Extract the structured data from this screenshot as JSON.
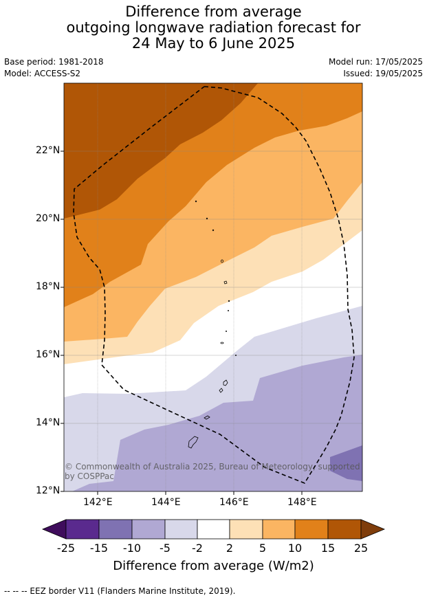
{
  "title": {
    "line1": "Difference from average",
    "line2": "outgoing longwave radiation forecast for",
    "line3": "24 May to 6 June 2025"
  },
  "meta": {
    "base_period": "Base period: 1981-2018",
    "model": "Model: ACCESS-S2",
    "model_run": "Model run: 17/05/2025",
    "issued": "Issued: 19/05/2025"
  },
  "map": {
    "lat_ticks": [
      "22°N",
      "20°N",
      "18°N",
      "16°N",
      "14°N",
      "12°N"
    ],
    "lon_ticks": [
      "142°E",
      "144°E",
      "146°E",
      "148°E"
    ],
    "lat_range": [
      12,
      23.9
    ],
    "lon_range": [
      141,
      149.75
    ],
    "copyright": "© Commonwealth of Australia 2025, Bureau of Meteorology, supported by COSPPac"
  },
  "colorbar": {
    "labels": [
      "-25",
      "-15",
      "-10",
      "-5",
      "-2",
      "2",
      "5",
      "10",
      "15",
      "25"
    ],
    "title": "Difference from average (W/m2)",
    "colors": [
      "#3f0d5c",
      "#5a2a8e",
      "#7f72b2",
      "#b0a8d3",
      "#d8d8ea",
      "#ffffff",
      "#fde0b6",
      "#fbb562",
      "#e1811a",
      "#b05606",
      "#7f3d0b"
    ]
  },
  "legend": {
    "eez": "--  --  -- EEZ border V11 (Flanders Marine Institute, 2019)."
  }
}
